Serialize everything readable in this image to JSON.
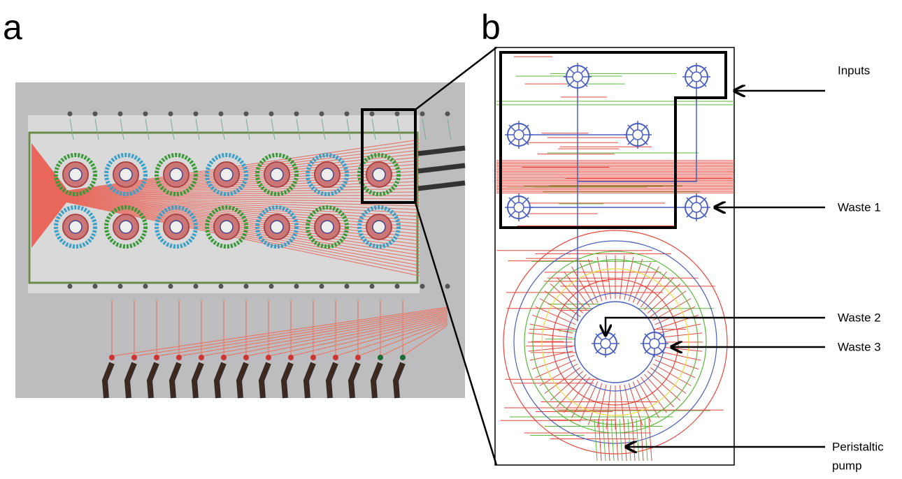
{
  "panels": {
    "a": {
      "label": "a"
    },
    "b": {
      "label": "b"
    }
  },
  "callouts": [
    {
      "label": "Inputs"
    },
    {
      "label": "Waste 1"
    },
    {
      "label": "Waste 2"
    },
    {
      "label": "Waste 3"
    },
    {
      "label": [
        "Peristaltic",
        "pump"
      ]
    }
  ]
}
